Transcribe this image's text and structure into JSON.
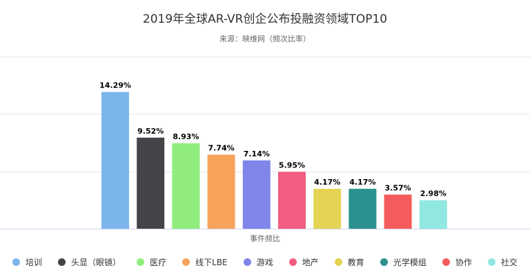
{
  "chart_data": {
    "type": "bar",
    "title": "2019年全球AR-VR创企公布投融资领域TOP10",
    "subtitle": "来源：映维网（频次比率）",
    "xlabel": "事件频比",
    "ylabel": "",
    "ylim": [
      0,
      18
    ],
    "grid": true,
    "legend_position": "bottom",
    "categories": [
      "培训",
      "头显（眼镜）",
      "医疗",
      "线下LBE",
      "游戏",
      "地产",
      "教育",
      "光学模组",
      "协作",
      "社交"
    ],
    "values": [
      14.29,
      9.52,
      8.93,
      7.74,
      7.14,
      5.95,
      4.17,
      4.17,
      3.57,
      2.98
    ],
    "labels": [
      "14.29%",
      "9.52%",
      "8.93%",
      "7.74%",
      "7.14%",
      "5.95%",
      "4.17%",
      "4.17%",
      "3.57%",
      "2.98%"
    ],
    "colors": [
      "#7cb5ec",
      "#434348",
      "#90ed7d",
      "#f7a35c",
      "#8085e9",
      "#f15c80",
      "#e4d354",
      "#2b908f",
      "#f45b5b",
      "#91e8e1"
    ]
  }
}
